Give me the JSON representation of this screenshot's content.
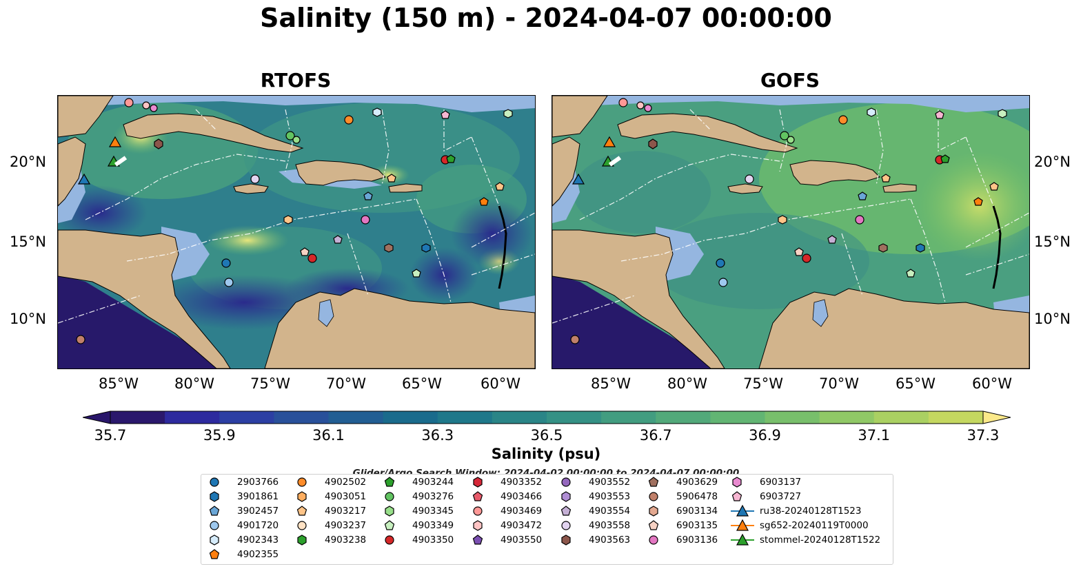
{
  "title": "Salinity (150 m) - 2024-04-07 00:00:00",
  "panels": [
    {
      "title": "RTOFS",
      "scheme": "rtofs"
    },
    {
      "title": "GOFS",
      "scheme": "gofs"
    }
  ],
  "lat_ticks": [
    "20°N",
    "15°N",
    "10°N"
  ],
  "lon_ticks": [
    "85°W",
    "80°W",
    "75°W",
    "70°W",
    "65°W",
    "60°W"
  ],
  "colorbar": {
    "label": "Salinity (psu)",
    "min": 35.6,
    "max": 37.4,
    "step": 0.1,
    "ticks": [
      "35.7",
      "35.9",
      "36.1",
      "36.3",
      "36.5",
      "36.7",
      "36.9",
      "37.1",
      "37.3"
    ],
    "extend": "both",
    "colormap": "haline"
  },
  "search_window": "Glider/Argo Search Window: 2024-04-02 00:00:00 to 2024-04-07 00:00:00",
  "legend": {
    "columns": [
      [
        {
          "label": "2903766",
          "marker": "circle",
          "color": "#1f77b4"
        },
        {
          "label": "3901861",
          "marker": "hexagon",
          "color": "#1f77b4"
        },
        {
          "label": "3902457",
          "marker": "pentagon",
          "color": "#6aa6d6"
        },
        {
          "label": "4901720",
          "marker": "circle",
          "color": "#9ec8ee"
        },
        {
          "label": "4902343",
          "marker": "hexagon",
          "color": "#d6ecfb"
        },
        {
          "label": "4902355",
          "marker": "pentagon",
          "color": "#ff7f0e"
        }
      ],
      [
        {
          "label": "4902502",
          "marker": "circle",
          "color": "#ff8c2a"
        },
        {
          "label": "4903051",
          "marker": "hexagon",
          "color": "#ffae60"
        },
        {
          "label": "4903217",
          "marker": "pentagon",
          "color": "#ffc488"
        },
        {
          "label": "4903237",
          "marker": "circle",
          "color": "#ffe2c4"
        },
        {
          "label": "4903238",
          "marker": "hexagon",
          "color": "#2ca02c"
        }
      ],
      [
        {
          "label": "4903244",
          "marker": "pentagon",
          "color": "#2ca02c"
        },
        {
          "label": "4903276",
          "marker": "circle",
          "color": "#62c462"
        },
        {
          "label": "4903345",
          "marker": "hexagon",
          "color": "#98df8a"
        },
        {
          "label": "4903349",
          "marker": "pentagon",
          "color": "#c8f0c0"
        },
        {
          "label": "4903350",
          "marker": "circle",
          "color": "#d62728"
        }
      ],
      [
        {
          "label": "4903352",
          "marker": "hexagon",
          "color": "#d62738"
        },
        {
          "label": "4903466",
          "marker": "pentagon",
          "color": "#e85a6a"
        },
        {
          "label": "4903469",
          "marker": "circle",
          "color": "#ff9896"
        },
        {
          "label": "4903472",
          "marker": "hexagon",
          "color": "#ffc4c4"
        },
        {
          "label": "4903550",
          "marker": "pentagon",
          "color": "#7b4fb2"
        }
      ],
      [
        {
          "label": "4903552",
          "marker": "circle",
          "color": "#9467bd"
        },
        {
          "label": "4903553",
          "marker": "hexagon",
          "color": "#b08ed4"
        },
        {
          "label": "4903554",
          "marker": "pentagon",
          "color": "#c5b0d5"
        },
        {
          "label": "4903558",
          "marker": "circle",
          "color": "#e2d4f0"
        },
        {
          "label": "4903563",
          "marker": "hexagon",
          "color": "#8c564b"
        }
      ],
      [
        {
          "label": "4903629",
          "marker": "pentagon",
          "color": "#a0705f"
        },
        {
          "label": "5906478",
          "marker": "circle",
          "color": "#c0806a"
        },
        {
          "label": "6903134",
          "marker": "hexagon",
          "color": "#e3a890"
        },
        {
          "label": "6903135",
          "marker": "pentagon",
          "color": "#f7d2c4"
        },
        {
          "label": "6903136",
          "marker": "circle",
          "color": "#e377c2"
        }
      ],
      [
        {
          "label": "6903137",
          "marker": "hexagon",
          "color": "#e98ad0"
        },
        {
          "label": "6903727",
          "marker": "pentagon",
          "color": "#f7b6d2"
        },
        {
          "label": "ru38-20240128T1523",
          "marker": "triangle-line",
          "color": "#1f77b4"
        },
        {
          "label": "sg652-20240119T0000",
          "marker": "triangle-line",
          "color": "#ff7f0e"
        },
        {
          "label": "stommel-20240128T1522",
          "marker": "triangle-line",
          "color": "#2ca02c"
        }
      ]
    ]
  }
}
